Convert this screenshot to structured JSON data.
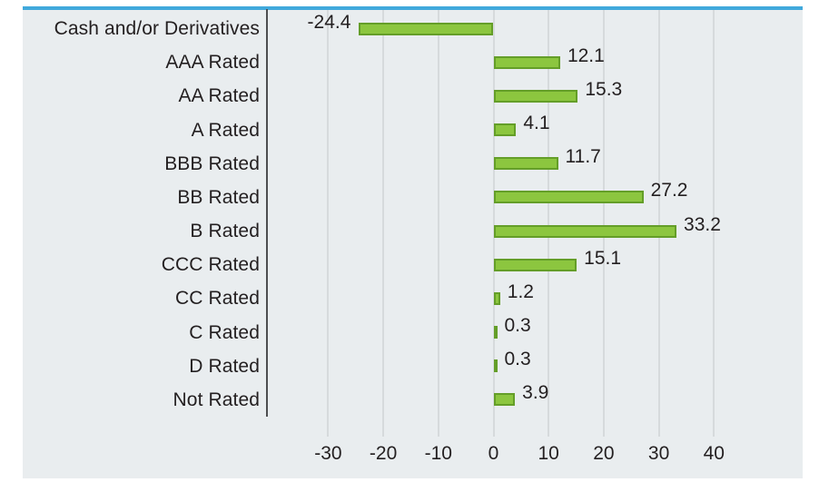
{
  "chart_data": {
    "type": "bar",
    "orientation": "horizontal",
    "title": "",
    "xlabel": "",
    "ylabel": "",
    "categories": [
      "Cash and/or Derivatives",
      "AAA Rated",
      "AA Rated",
      "A Rated",
      "BBB Rated",
      "BB Rated",
      "B Rated",
      "CCC Rated",
      "CC Rated",
      "C Rated",
      "D Rated",
      "Not Rated"
    ],
    "values": [
      -24.4,
      12.1,
      15.3,
      4.1,
      11.7,
      27.2,
      33.2,
      15.1,
      1.2,
      0.3,
      0.3,
      3.9
    ],
    "value_labels": [
      "-24.4",
      "12.1",
      "15.3",
      "4.1",
      "11.7",
      "27.2",
      "33.2",
      "15.1",
      "1.2",
      "0.3",
      "0.3",
      "3.9"
    ],
    "x_ticks": [
      -30,
      -20,
      -10,
      0,
      10,
      20,
      30,
      40
    ],
    "x_tick_labels": [
      "-30",
      "-20",
      "-10",
      "0",
      "10",
      "20",
      "30",
      "40"
    ],
    "xlim": [
      -41,
      56
    ],
    "grid": true,
    "legend": null,
    "colors": {
      "panel_background": "#e9edef",
      "top_accent": "#41a9dc",
      "bar_fill": "#8cc63f",
      "bar_border": "#649e28",
      "gridline": "#d6dadc",
      "axis_line": "#4d4e50",
      "text": "#231f20"
    }
  }
}
